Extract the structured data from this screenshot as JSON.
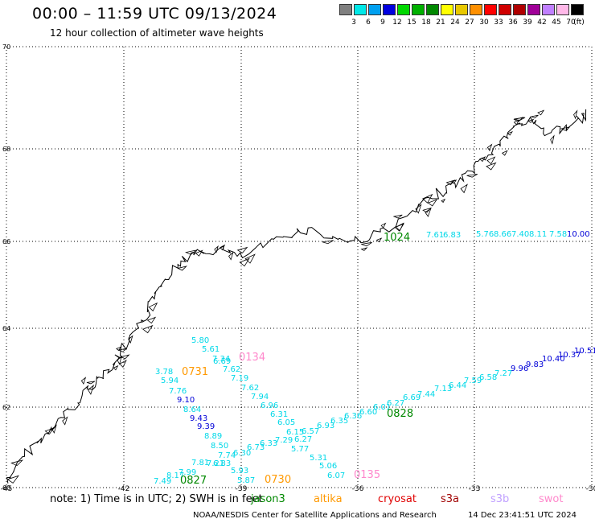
{
  "header": {
    "title": "00:00 – 11:59 UTC 09/13/2024",
    "subtitle": "12 hour collection of altimeter wave heights"
  },
  "colorbar": {
    "colors": [
      "#808080",
      "#00e8e8",
      "#00a0f0",
      "#0000e0",
      "#00d800",
      "#00b000",
      "#008800",
      "#ffff00",
      "#e8c800",
      "#ff9000",
      "#ff0000",
      "#d00000",
      "#b00000",
      "#a00098",
      "#c080ff",
      "#ffb8e8",
      "#000000"
    ],
    "labels": [
      "3",
      "6",
      "9",
      "12",
      "15",
      "18",
      "21",
      "24",
      "27",
      "30",
      "33",
      "36",
      "39",
      "42",
      "45",
      "70",
      "(ft)"
    ]
  },
  "map": {
    "lat_labels": [
      "70",
      "68",
      "66",
      "64",
      "62",
      "60"
    ],
    "lon_labels": [
      "-45",
      "-42",
      "-39",
      "-36",
      "-33",
      "-30"
    ]
  },
  "tracks": [
    {
      "time": "0731",
      "color": "#ff9900",
      "values": [
        {
          "v": "5.80",
          "c": "#00d8e8"
        },
        {
          "v": "5.61",
          "c": "#00d8e8"
        },
        {
          "v": "7.34",
          "c": "#00d8e8"
        },
        {
          "v": "6.69",
          "c": "#00d8e8"
        },
        {
          "v": "7.62",
          "c": "#00d8e8"
        },
        {
          "v": "7.19",
          "c": "#00d8e8"
        },
        {
          "v": "7.62",
          "c": "#00d8e8"
        },
        {
          "v": "7.94",
          "c": "#00d8e8"
        },
        {
          "v": "6.96",
          "c": "#00d8e8"
        },
        {
          "v": "6.31",
          "c": "#00d8e8"
        },
        {
          "v": "6.05",
          "c": "#00d8e8"
        },
        {
          "v": "6.15",
          "c": "#00d8e8"
        },
        {
          "v": "7.29",
          "c": "#00d8e8"
        },
        {
          "v": "6.27",
          "c": "#00d8e8"
        },
        {
          "v": "5.77",
          "c": "#00d8e8"
        },
        {
          "v": "5.31",
          "c": "#00d8e8"
        },
        {
          "v": "5.06",
          "c": "#00d8e8"
        },
        {
          "v": "6.07",
          "c": "#00d8e8"
        }
      ]
    },
    {
      "time": "0134",
      "color": "#ff88cc",
      "values": []
    },
    {
      "time": "0135",
      "color": "#ff88cc",
      "values": []
    },
    {
      "time": "0827",
      "color": "#008800",
      "values": [
        {
          "v": "3.78",
          "c": "#00d8e8"
        },
        {
          "v": "5.94",
          "c": "#00d8e8"
        },
        {
          "v": "7.76",
          "c": "#00d8e8"
        },
        {
          "v": "9.10",
          "c": "#0000d8"
        },
        {
          "v": "8.64",
          "c": "#00d8e8"
        },
        {
          "v": "9.43",
          "c": "#0000d8"
        },
        {
          "v": "9.39",
          "c": "#0000d8"
        },
        {
          "v": "8.89",
          "c": "#00d8e8"
        },
        {
          "v": "8.50",
          "c": "#00d8e8"
        },
        {
          "v": "7.74",
          "c": "#00d8e8"
        },
        {
          "v": "7.21",
          "c": "#00d8e8"
        },
        {
          "v": "6.83",
          "c": "#00d8e8"
        },
        {
          "v": "7.81",
          "c": "#00d8e8"
        },
        {
          "v": "7.99",
          "c": "#00d8e8"
        },
        {
          "v": "8.17",
          "c": "#00d8e8"
        },
        {
          "v": "7.49",
          "c": "#00d8e8"
        }
      ]
    },
    {
      "time": "0730",
      "color": "#ff9900",
      "values": [
        {
          "v": "6.30",
          "c": "#00d8e8"
        },
        {
          "v": "6.73",
          "c": "#00d8e8"
        },
        {
          "v": "6.33",
          "c": "#00d8e8"
        },
        {
          "v": "5.93",
          "c": "#00d8e8"
        },
        {
          "v": "5.87",
          "c": "#00d8e8"
        }
      ]
    },
    {
      "time": "0828",
      "color": "#008800",
      "values": [
        {
          "v": "6.57",
          "c": "#00d8e8"
        },
        {
          "v": "6.93",
          "c": "#00d8e8"
        },
        {
          "v": "6.35",
          "c": "#00d8e8"
        },
        {
          "v": "6.36",
          "c": "#00d8e8"
        },
        {
          "v": "6.60",
          "c": "#00d8e8"
        },
        {
          "v": "6.01",
          "c": "#00d8e8"
        },
        {
          "v": "6.27",
          "c": "#00d8e8"
        },
        {
          "v": "6.69",
          "c": "#00d8e8"
        },
        {
          "v": "7.44",
          "c": "#00d8e8"
        },
        {
          "v": "7.13",
          "c": "#00d8e8"
        },
        {
          "v": "6.44",
          "c": "#00d8e8"
        },
        {
          "v": "7.59",
          "c": "#00d8e8"
        },
        {
          "v": "6.58",
          "c": "#00d8e8"
        },
        {
          "v": "7.27",
          "c": "#00d8e8"
        },
        {
          "v": "9.96",
          "c": "#0000d8"
        },
        {
          "v": "9.83",
          "c": "#0000d8"
        },
        {
          "v": "10.40",
          "c": "#0000d8"
        },
        {
          "v": "10.37",
          "c": "#0000d8"
        },
        {
          "v": "10.51",
          "c": "#0000d8"
        }
      ]
    },
    {
      "time": "1024",
      "color": "#008800",
      "values": [
        {
          "v": "7.61",
          "c": "#00d8e8"
        },
        {
          "v": "6.83",
          "c": "#00d8e8"
        },
        {
          "v": "5.76",
          "c": "#00d8e8"
        },
        {
          "v": "8.66",
          "c": "#00d8e8"
        },
        {
          "v": "7.40",
          "c": "#00d8e8"
        },
        {
          "v": "8.11",
          "c": "#00d8e8"
        },
        {
          "v": "7.58",
          "c": "#00d8e8"
        },
        {
          "v": "10.00",
          "c": "#0000d8"
        }
      ]
    }
  ],
  "note": "note:  1) Time is in UTC;  2) SWH is in feet",
  "satellites": [
    {
      "name": "jason3",
      "color": "#008800"
    },
    {
      "name": "altika",
      "color": "#ff9900"
    },
    {
      "name": "cryosat",
      "color": "#e00000"
    },
    {
      "name": "s3a",
      "color": "#a00000"
    },
    {
      "name": "s3b",
      "color": "#c0a0ff"
    },
    {
      "name": "swot",
      "color": "#ff88cc"
    }
  ],
  "footer": {
    "credit": "NOAA/NESDIS Center for Satellite Applications and Research",
    "timestamp": "14 Dec 23:41:51 UTC 2024"
  }
}
